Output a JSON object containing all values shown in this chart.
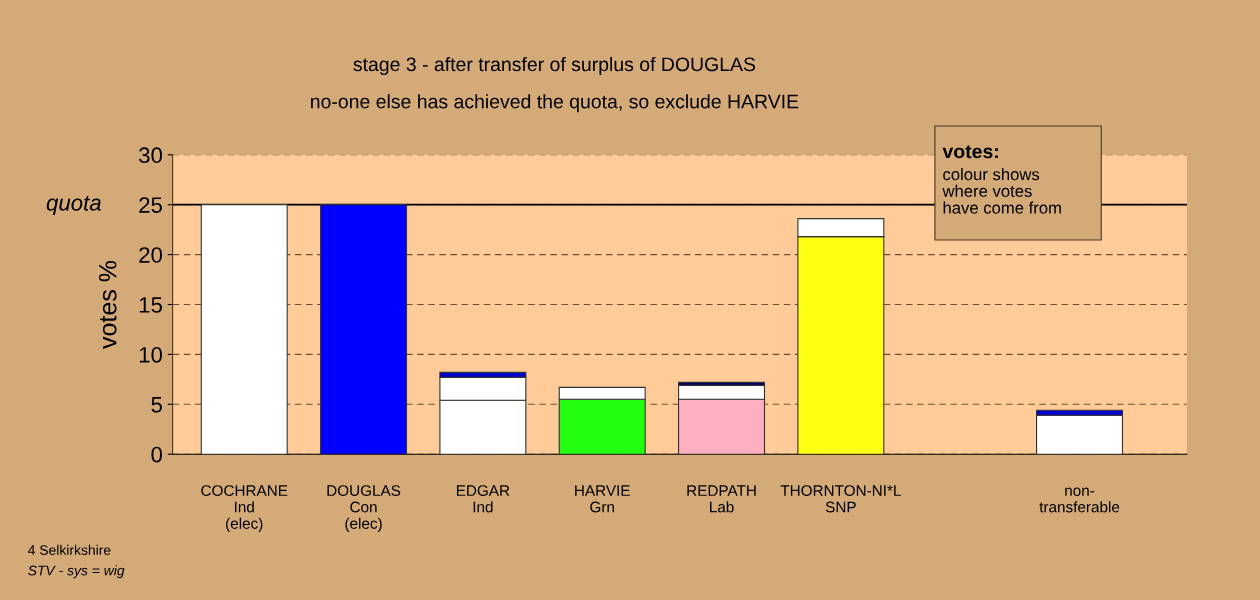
{
  "chart_data": {
    "type": "bar",
    "stacked": true,
    "title": "stage 3 - after transfer of surplus of DOUGLAS",
    "subtitle": "no-one else has achieved the quota, so exclude HARVIE",
    "ylabel": "votes %",
    "categories": [
      "COCHRANE\nInd\n(elec)",
      "DOUGLAS\nCon\n(elec)",
      "EDGAR\nInd",
      "HARVIE\nGrn",
      "REDPATH\nLab",
      "THORNTON-NI*L\nSNP",
      null,
      "non-\ntransferable"
    ],
    "series": [
      {
        "values": [
          25,
          25,
          5.4,
          5.5,
          5.5,
          21.8,
          null,
          3.9
        ],
        "colors": [
          "#ffffff",
          "#0000ff",
          "#ffffff",
          "#22ff11",
          "#ffb0c0",
          "#ffff11",
          "#ffffff",
          "#ffffff"
        ]
      },
      {
        "values": [
          null,
          null,
          2.3,
          1.2,
          1.4,
          1.8,
          null,
          0.5
        ],
        "colors": [
          "#ffffff",
          "#ffffff",
          "#ffffff",
          "#ffffff",
          "#ffffff",
          "#ffffff",
          "#ffffff",
          "#0000cc"
        ]
      },
      {
        "values": [
          null,
          null,
          0.5,
          null,
          0.3,
          null,
          null,
          null
        ],
        "colors": [
          "#0000cc",
          "#0000cc",
          "#0000cc",
          "#0000cc",
          "#000066",
          "#0000cc",
          "#0000cc",
          "#0000cc"
        ]
      }
    ],
    "ylim": [
      0,
      30
    ],
    "yticks": [
      0,
      5,
      10,
      15,
      20,
      25,
      30
    ],
    "ref_lines": [
      {
        "axis": "y",
        "value": 25,
        "label": "quota",
        "color": "#000000",
        "line_style": "solid"
      }
    ],
    "grid": "y",
    "annotations": [
      "votes:",
      "colour shows\nwhere votes\nhave come from",
      "4 Selkirkshire",
      "STV - sys = wig"
    ]
  }
}
